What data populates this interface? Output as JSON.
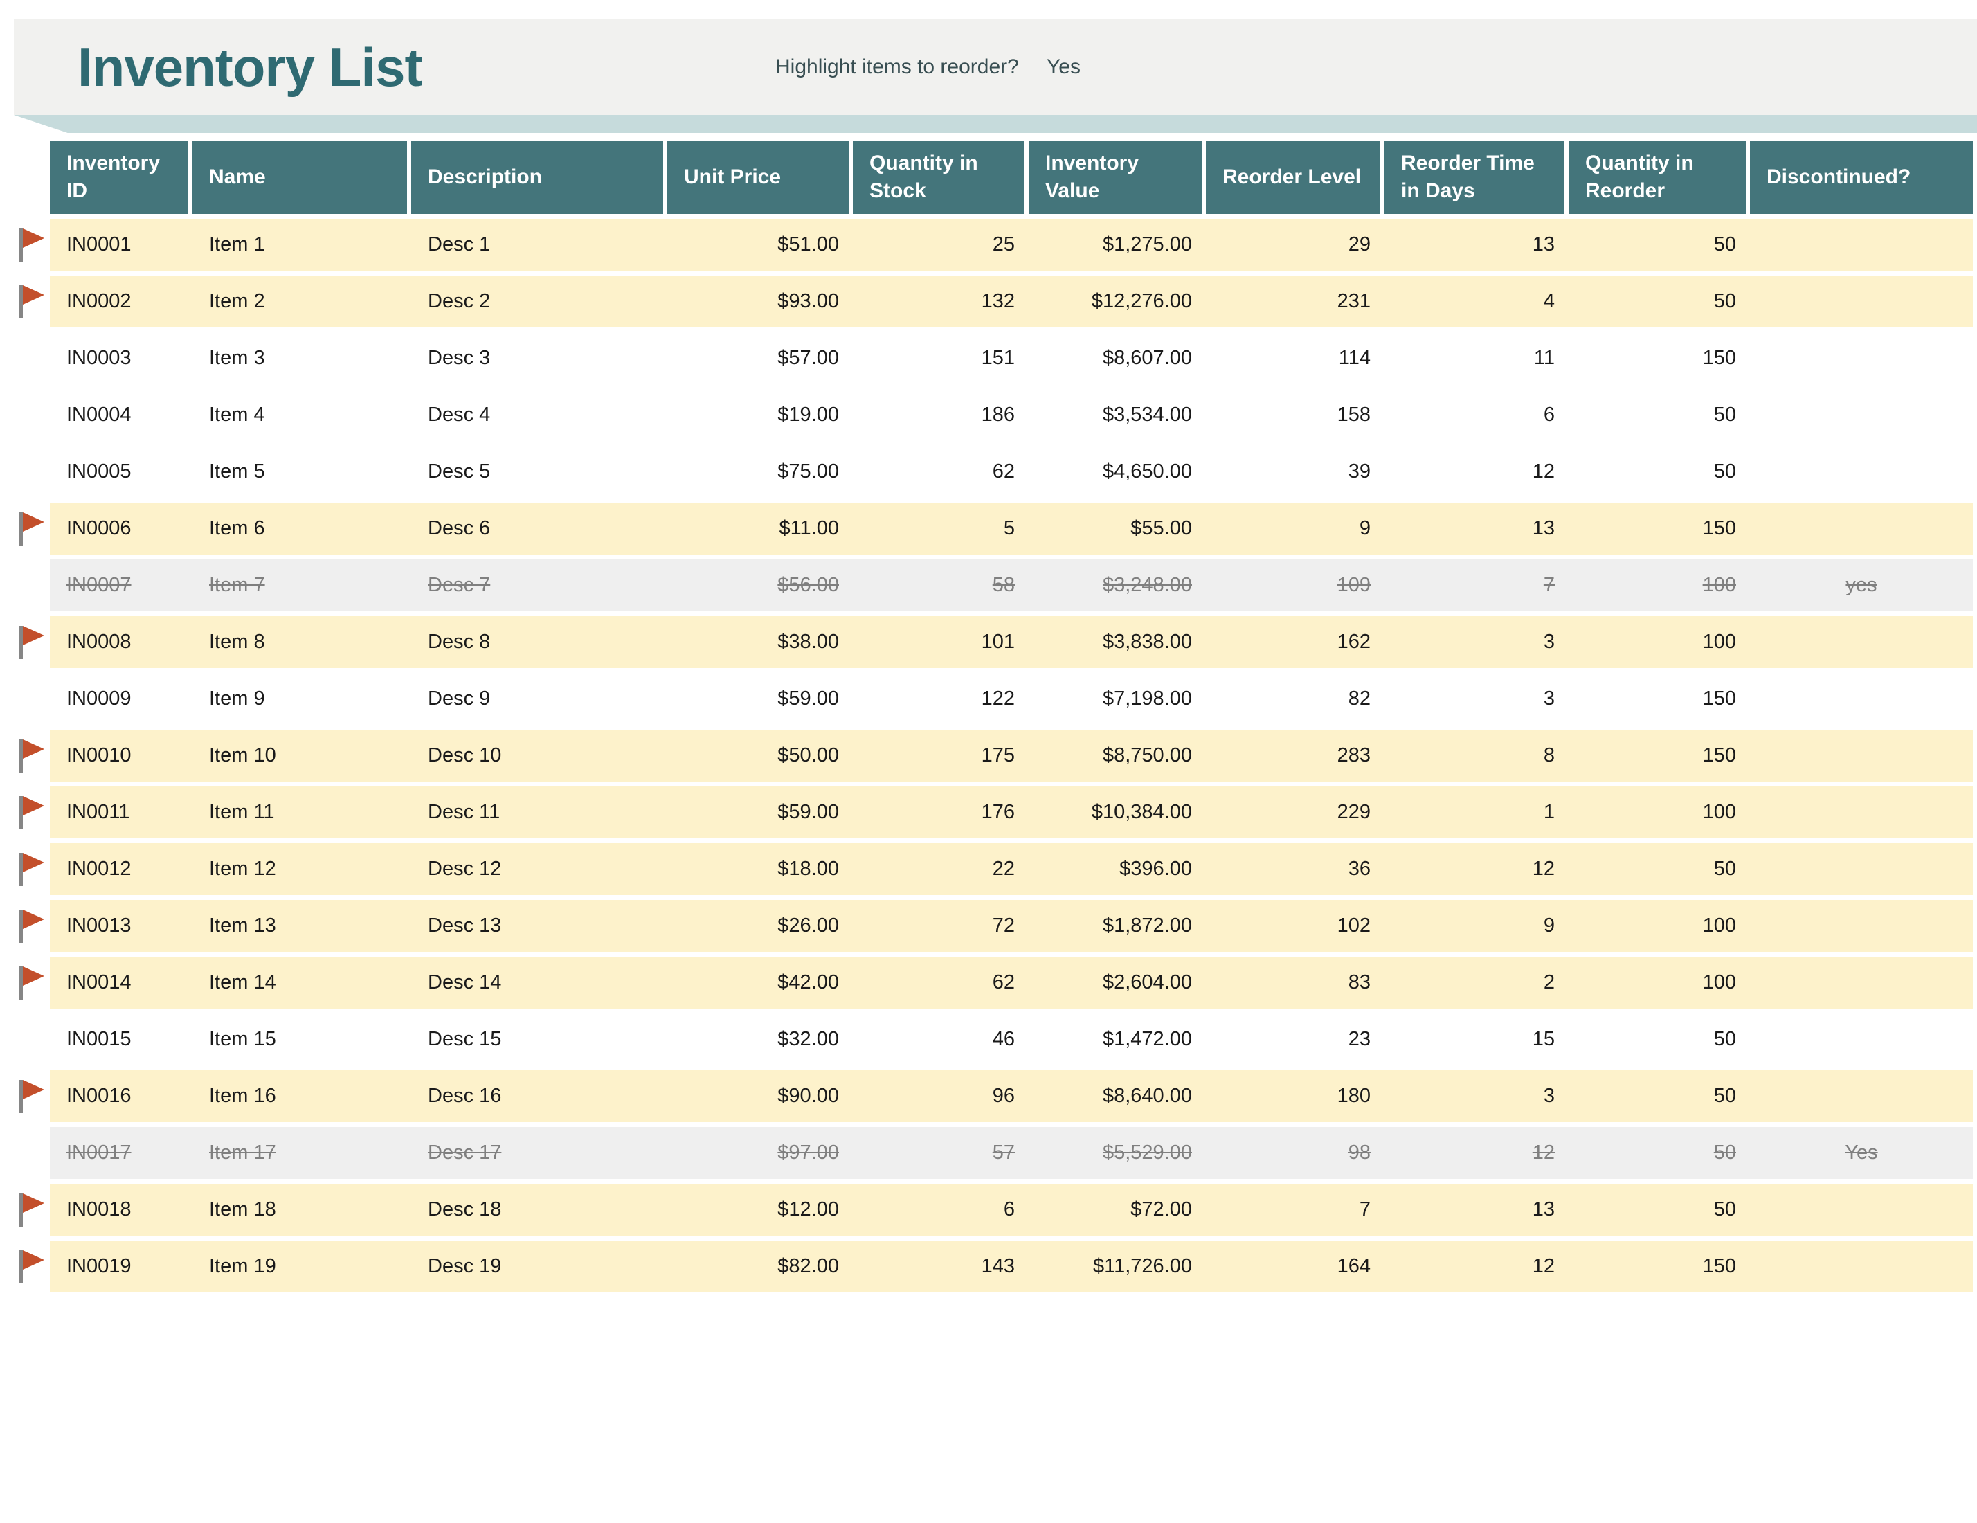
{
  "header": {
    "title": "Inventory List",
    "highlight_question": "Highlight items to reorder?",
    "highlight_answer": "Yes"
  },
  "icons": {
    "reorder_flag": "flag-icon (gray pole with red-orange pennant marking items to reorder)"
  },
  "colors": {
    "banner_bg": "#F1F1EF",
    "title_text": "#2F6A72",
    "ribbon_band": "#C6DBDC",
    "ribbon_fold": "#A9C7CA",
    "header_fill": "#44757B",
    "header_text": "#FFFFFF",
    "highlight_row": "#FDF2CB",
    "discontinued_row": "#EFEFEF",
    "discontinued_text": "#7F7F7F",
    "body_text": "#1A1A1A",
    "flag_red": "#C34F2B",
    "flag_pole": "#868686"
  },
  "table": {
    "columns": [
      {
        "key": "id",
        "label": "Inventory ID",
        "align": "left"
      },
      {
        "key": "name",
        "label": "Name",
        "align": "left"
      },
      {
        "key": "desc",
        "label": "Description",
        "align": "left"
      },
      {
        "key": "price",
        "label": "Unit Price",
        "align": "right"
      },
      {
        "key": "qty_stock",
        "label": "Quantity in Stock",
        "align": "right"
      },
      {
        "key": "value",
        "label": "Inventory Value",
        "align": "right"
      },
      {
        "key": "reorder_level",
        "label": "Reorder Level",
        "align": "right"
      },
      {
        "key": "reorder_time",
        "label": "Reorder Time in Days",
        "align": "right"
      },
      {
        "key": "qty_reorder",
        "label": "Quantity in Reorder",
        "align": "right"
      },
      {
        "key": "discontinued",
        "label": "Discontinued?",
        "align": "center"
      }
    ],
    "rows": [
      {
        "state": "highlight",
        "flagged": true,
        "id": "IN0001",
        "name": "Item 1",
        "desc": "Desc 1",
        "price": "$51.00",
        "qty_stock": "25",
        "value": "$1,275.00",
        "reorder_level": "29",
        "reorder_time": "13",
        "qty_reorder": "50",
        "discontinued": ""
      },
      {
        "state": "highlight",
        "flagged": true,
        "id": "IN0002",
        "name": "Item 2",
        "desc": "Desc 2",
        "price": "$93.00",
        "qty_stock": "132",
        "value": "$12,276.00",
        "reorder_level": "231",
        "reorder_time": "4",
        "qty_reorder": "50",
        "discontinued": ""
      },
      {
        "state": "normal",
        "flagged": false,
        "id": "IN0003",
        "name": "Item 3",
        "desc": "Desc 3",
        "price": "$57.00",
        "qty_stock": "151",
        "value": "$8,607.00",
        "reorder_level": "114",
        "reorder_time": "11",
        "qty_reorder": "150",
        "discontinued": ""
      },
      {
        "state": "normal",
        "flagged": false,
        "id": "IN0004",
        "name": "Item 4",
        "desc": "Desc 4",
        "price": "$19.00",
        "qty_stock": "186",
        "value": "$3,534.00",
        "reorder_level": "158",
        "reorder_time": "6",
        "qty_reorder": "50",
        "discontinued": ""
      },
      {
        "state": "normal",
        "flagged": false,
        "id": "IN0005",
        "name": "Item 5",
        "desc": "Desc 5",
        "price": "$75.00",
        "qty_stock": "62",
        "value": "$4,650.00",
        "reorder_level": "39",
        "reorder_time": "12",
        "qty_reorder": "50",
        "discontinued": ""
      },
      {
        "state": "highlight",
        "flagged": true,
        "id": "IN0006",
        "name": "Item 6",
        "desc": "Desc 6",
        "price": "$11.00",
        "qty_stock": "5",
        "value": "$55.00",
        "reorder_level": "9",
        "reorder_time": "13",
        "qty_reorder": "150",
        "discontinued": ""
      },
      {
        "state": "discontinued",
        "flagged": false,
        "id": "IN0007",
        "name": "Item 7",
        "desc": "Desc 7",
        "price": "$56.00",
        "qty_stock": "58",
        "value": "$3,248.00",
        "reorder_level": "109",
        "reorder_time": "7",
        "qty_reorder": "100",
        "discontinued": "yes"
      },
      {
        "state": "highlight",
        "flagged": true,
        "id": "IN0008",
        "name": "Item 8",
        "desc": "Desc 8",
        "price": "$38.00",
        "qty_stock": "101",
        "value": "$3,838.00",
        "reorder_level": "162",
        "reorder_time": "3",
        "qty_reorder": "100",
        "discontinued": ""
      },
      {
        "state": "normal",
        "flagged": false,
        "id": "IN0009",
        "name": "Item 9",
        "desc": "Desc 9",
        "price": "$59.00",
        "qty_stock": "122",
        "value": "$7,198.00",
        "reorder_level": "82",
        "reorder_time": "3",
        "qty_reorder": "150",
        "discontinued": ""
      },
      {
        "state": "highlight",
        "flagged": true,
        "id": "IN0010",
        "name": "Item 10",
        "desc": "Desc 10",
        "price": "$50.00",
        "qty_stock": "175",
        "value": "$8,750.00",
        "reorder_level": "283",
        "reorder_time": "8",
        "qty_reorder": "150",
        "discontinued": ""
      },
      {
        "state": "highlight",
        "flagged": true,
        "id": "IN0011",
        "name": "Item 11",
        "desc": "Desc 11",
        "price": "$59.00",
        "qty_stock": "176",
        "value": "$10,384.00",
        "reorder_level": "229",
        "reorder_time": "1",
        "qty_reorder": "100",
        "discontinued": ""
      },
      {
        "state": "highlight",
        "flagged": true,
        "id": "IN0012",
        "name": "Item 12",
        "desc": "Desc 12",
        "price": "$18.00",
        "qty_stock": "22",
        "value": "$396.00",
        "reorder_level": "36",
        "reorder_time": "12",
        "qty_reorder": "50",
        "discontinued": ""
      },
      {
        "state": "highlight",
        "flagged": true,
        "id": "IN0013",
        "name": "Item 13",
        "desc": "Desc 13",
        "price": "$26.00",
        "qty_stock": "72",
        "value": "$1,872.00",
        "reorder_level": "102",
        "reorder_time": "9",
        "qty_reorder": "100",
        "discontinued": ""
      },
      {
        "state": "highlight",
        "flagged": true,
        "id": "IN0014",
        "name": "Item 14",
        "desc": "Desc 14",
        "price": "$42.00",
        "qty_stock": "62",
        "value": "$2,604.00",
        "reorder_level": "83",
        "reorder_time": "2",
        "qty_reorder": "100",
        "discontinued": ""
      },
      {
        "state": "normal",
        "flagged": false,
        "id": "IN0015",
        "name": "Item 15",
        "desc": "Desc 15",
        "price": "$32.00",
        "qty_stock": "46",
        "value": "$1,472.00",
        "reorder_level": "23",
        "reorder_time": "15",
        "qty_reorder": "50",
        "discontinued": ""
      },
      {
        "state": "highlight",
        "flagged": true,
        "id": "IN0016",
        "name": "Item 16",
        "desc": "Desc 16",
        "price": "$90.00",
        "qty_stock": "96",
        "value": "$8,640.00",
        "reorder_level": "180",
        "reorder_time": "3",
        "qty_reorder": "50",
        "discontinued": ""
      },
      {
        "state": "discontinued",
        "flagged": false,
        "id": "IN0017",
        "name": "Item 17",
        "desc": "Desc 17",
        "price": "$97.00",
        "qty_stock": "57",
        "value": "$5,529.00",
        "reorder_level": "98",
        "reorder_time": "12",
        "qty_reorder": "50",
        "discontinued": "Yes"
      },
      {
        "state": "highlight",
        "flagged": true,
        "id": "IN0018",
        "name": "Item 18",
        "desc": "Desc 18",
        "price": "$12.00",
        "qty_stock": "6",
        "value": "$72.00",
        "reorder_level": "7",
        "reorder_time": "13",
        "qty_reorder": "50",
        "discontinued": ""
      },
      {
        "state": "highlight",
        "flagged": true,
        "id": "IN0019",
        "name": "Item 19",
        "desc": "Desc 19",
        "price": "$82.00",
        "qty_stock": "143",
        "value": "$11,726.00",
        "reorder_level": "164",
        "reorder_time": "12",
        "qty_reorder": "150",
        "discontinued": ""
      }
    ]
  }
}
